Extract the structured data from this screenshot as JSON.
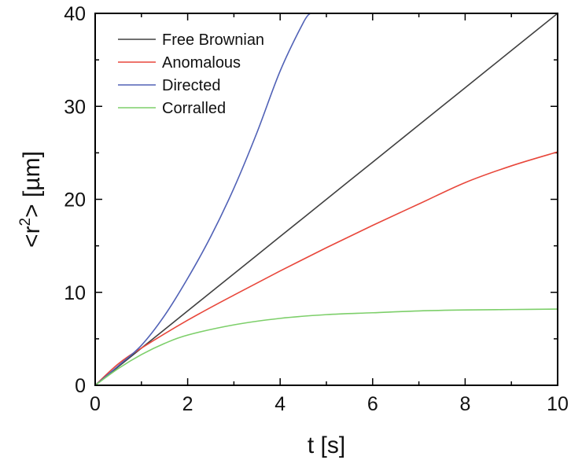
{
  "chart_data": {
    "type": "line",
    "xlabel": "t [s]",
    "ylabel": "<r",
    "ylabel_sup": "2",
    "ylabel_rest": "> [µm]",
    "xlim": [
      0,
      10
    ],
    "ylim": [
      0,
      40
    ],
    "xticks": [
      0,
      2,
      4,
      6,
      8,
      10
    ],
    "yticks": [
      0,
      10,
      20,
      30,
      40
    ],
    "grid": false,
    "legend_position": "top-left",
    "series": [
      {
        "name": "Free Brownian",
        "color": "#404040",
        "x": [
          0,
          1,
          2,
          3,
          4,
          5,
          6,
          7,
          8,
          9,
          10
        ],
        "y": [
          0,
          4,
          8,
          12,
          16,
          20,
          24,
          28,
          32,
          36,
          40
        ]
      },
      {
        "name": "Anomalous",
        "color": "#e8473b",
        "x": [
          0,
          0.5,
          1,
          2,
          3,
          4,
          5,
          6,
          7,
          8,
          9,
          10
        ],
        "y": [
          0,
          2.3,
          4,
          7,
          9.7,
          12.3,
          14.8,
          17.2,
          19.5,
          21.8,
          23.6,
          25.1
        ]
      },
      {
        "name": "Directed",
        "color": "#5061b6",
        "x": [
          0,
          0.5,
          1,
          1.5,
          2,
          2.5,
          3,
          3.5,
          4,
          4.5,
          4.65
        ],
        "y": [
          0,
          2.1,
          4.3,
          7.5,
          11.5,
          16,
          21.2,
          27.2,
          33.8,
          39,
          40
        ]
      },
      {
        "name": "Corralled",
        "color": "#7dcf6a",
        "x": [
          0,
          0.5,
          1,
          1.5,
          2,
          3,
          4,
          5,
          6,
          7,
          8,
          9,
          10
        ],
        "y": [
          0,
          1.8,
          3.3,
          4.5,
          5.4,
          6.5,
          7.2,
          7.6,
          7.8,
          8.0,
          8.1,
          8.15,
          8.2
        ]
      }
    ]
  }
}
